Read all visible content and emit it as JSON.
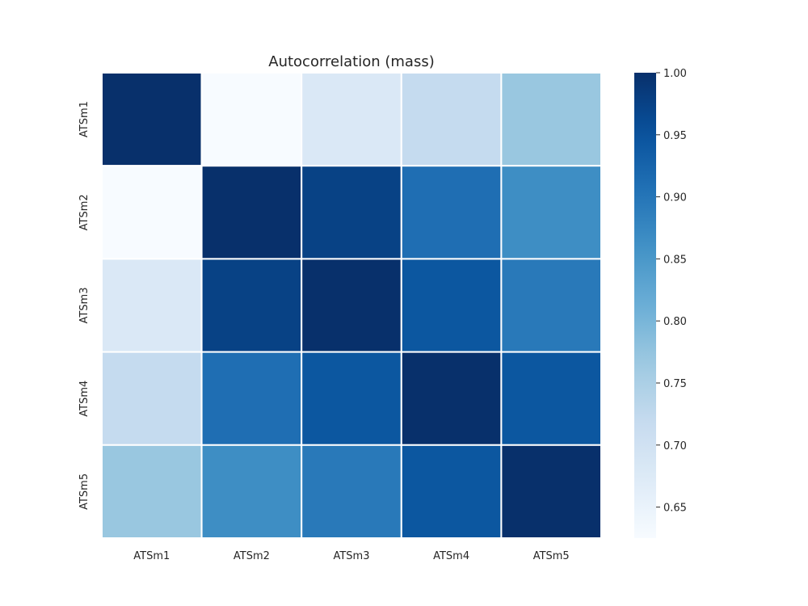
{
  "chart_data": {
    "type": "heatmap",
    "title": "Autocorrelation (mass)",
    "xlabel": "",
    "ylabel": "",
    "x_categories": [
      "ATSm1",
      "ATSm2",
      "ATSm3",
      "ATSm4",
      "ATSm5"
    ],
    "y_categories": [
      "ATSm1",
      "ATSm2",
      "ATSm3",
      "ATSm4",
      "ATSm5"
    ],
    "matrix": [
      [
        1.0,
        0.625,
        0.68,
        0.72,
        0.77
      ],
      [
        0.625,
        1.0,
        0.975,
        0.91,
        0.865
      ],
      [
        0.68,
        0.975,
        1.0,
        0.945,
        0.895
      ],
      [
        0.72,
        0.91,
        0.945,
        1.0,
        0.945
      ],
      [
        0.77,
        0.865,
        0.895,
        0.945,
        1.0
      ]
    ],
    "colormap": "Blues",
    "colorbar": {
      "min": 0.625,
      "max": 1.0,
      "ticks": [
        0.65,
        0.7,
        0.75,
        0.8,
        0.85,
        0.9,
        0.95,
        1.0
      ],
      "tick_labels": [
        "0.65",
        "0.70",
        "0.75",
        "0.80",
        "0.85",
        "0.90",
        "0.95",
        "1.00"
      ]
    },
    "grid": false,
    "cell_border_color": "#ffffff"
  }
}
